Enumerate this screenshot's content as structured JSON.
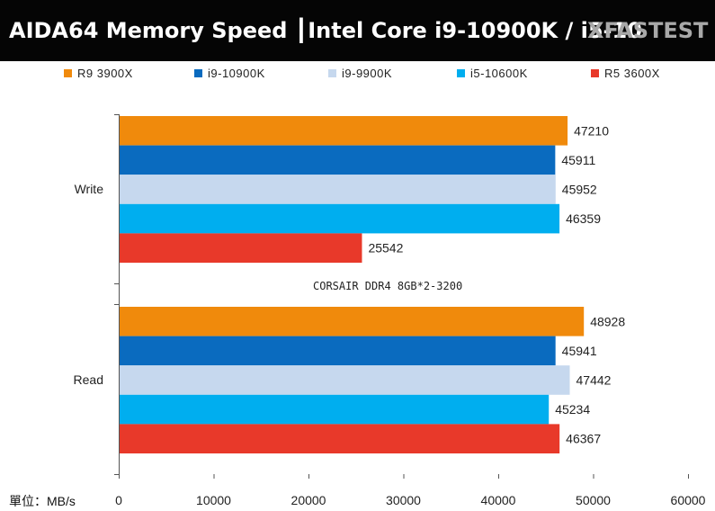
{
  "header": {
    "title": "AIDA64 Memory  Speed  ┃Intel Core i9-10900K / i5-10",
    "brand": "XFASTEST"
  },
  "unit_label": "單位：MB/s",
  "chart_data": {
    "type": "bar",
    "orientation": "horizontal",
    "categories": [
      "Write",
      "Read"
    ],
    "series": [
      {
        "name": "R9 3900X",
        "color": "#f08a0c",
        "values": [
          47210,
          48928
        ]
      },
      {
        "name": "i9-10900K",
        "color": "#0a6bbf",
        "values": [
          45911,
          45941
        ]
      },
      {
        "name": "i9-9900K",
        "color": "#c6d8ee",
        "values": [
          45952,
          47442
        ]
      },
      {
        "name": "i5-10600K",
        "color": "#00aeef",
        "values": [
          46359,
          45234
        ]
      },
      {
        "name": "R5 3600X",
        "color": "#e8392a",
        "values": [
          25542,
          46367
        ]
      }
    ],
    "annotation": "CORSAIR DDR4 8GB*2-3200",
    "xlim": [
      0,
      60000
    ],
    "xticks": [
      "0",
      "10000",
      "20000",
      "30000",
      "40000",
      "50000",
      "60000"
    ],
    "grid": false,
    "legend_position": "top"
  }
}
